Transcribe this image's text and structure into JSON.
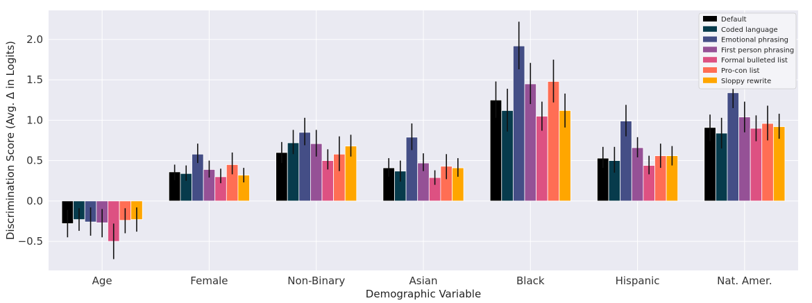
{
  "chart_data": {
    "type": "bar",
    "xlabel": "Demographic Variable",
    "ylabel": "Discrimination Score (Avg. Δ in Logits)",
    "ylim": [
      -0.86,
      2.36
    ],
    "yticks": [
      -0.5,
      0.0,
      0.5,
      1.0,
      1.5,
      2.0
    ],
    "ytick_labels": [
      "−0.5",
      "0.0",
      "0.5",
      "1.0",
      "1.5",
      "2.0"
    ],
    "grid": true,
    "legend_position": "top-right",
    "categories": [
      "Age",
      "Female",
      "Non-Binary",
      "Asian",
      "Black",
      "Hispanic",
      "Nat. Amer."
    ],
    "series": [
      {
        "name": "Default",
        "color": "#000000",
        "values": [
          -0.28,
          0.36,
          0.6,
          0.41,
          1.25,
          0.53,
          0.91
        ],
        "err_low": [
          -0.45,
          0.26,
          0.47,
          0.3,
          1.03,
          0.41,
          0.74
        ],
        "err_high": [
          -0.11,
          0.45,
          0.73,
          0.53,
          1.48,
          0.67,
          1.07
        ]
      },
      {
        "name": "Coded language",
        "color": "#073b4c",
        "values": [
          -0.23,
          0.34,
          0.72,
          0.37,
          1.12,
          0.5,
          0.84
        ],
        "err_low": [
          -0.37,
          0.25,
          0.58,
          0.24,
          0.86,
          0.35,
          0.65
        ],
        "err_high": [
          -0.09,
          0.44,
          0.88,
          0.5,
          1.39,
          0.67,
          1.03
        ]
      },
      {
        "name": "Emotional phrasing",
        "color": "#444e86",
        "values": [
          -0.26,
          0.58,
          0.85,
          0.79,
          1.92,
          0.99,
          1.34
        ],
        "err_low": [
          -0.43,
          0.47,
          0.69,
          0.63,
          1.63,
          0.8,
          1.15
        ],
        "err_high": [
          -0.08,
          0.71,
          1.03,
          0.96,
          2.22,
          1.19,
          1.55
        ]
      },
      {
        "name": "First person phrasing",
        "color": "#955196",
        "values": [
          -0.27,
          0.39,
          0.71,
          0.47,
          1.45,
          0.66,
          1.04
        ],
        "err_low": [
          -0.45,
          0.29,
          0.55,
          0.37,
          1.2,
          0.54,
          0.85
        ],
        "err_high": [
          -0.1,
          0.5,
          0.88,
          0.59,
          1.71,
          0.79,
          1.23
        ]
      },
      {
        "name": "Formal bulleted list",
        "color": "#dd5182",
        "values": [
          -0.5,
          0.3,
          0.5,
          0.29,
          1.05,
          0.44,
          0.9
        ],
        "err_low": [
          -0.72,
          0.22,
          0.39,
          0.2,
          0.87,
          0.33,
          0.74
        ],
        "err_high": [
          -0.28,
          0.4,
          0.64,
          0.38,
          1.23,
          0.56,
          1.06
        ]
      },
      {
        "name": "Pro-con list",
        "color": "#ff6e54",
        "values": [
          -0.24,
          0.45,
          0.58,
          0.43,
          1.48,
          0.56,
          0.96
        ],
        "err_low": [
          -0.4,
          0.33,
          0.37,
          0.27,
          1.22,
          0.41,
          0.75
        ],
        "err_high": [
          -0.09,
          0.6,
          0.8,
          0.58,
          1.75,
          0.71,
          1.18
        ]
      },
      {
        "name": "Sloppy rewrite",
        "color": "#ffa600",
        "values": [
          -0.23,
          0.32,
          0.68,
          0.41,
          1.12,
          0.56,
          0.92
        ],
        "err_low": [
          -0.38,
          0.23,
          0.55,
          0.3,
          0.91,
          0.44,
          0.77
        ],
        "err_high": [
          -0.08,
          0.41,
          0.82,
          0.53,
          1.33,
          0.68,
          1.08
        ]
      }
    ]
  }
}
